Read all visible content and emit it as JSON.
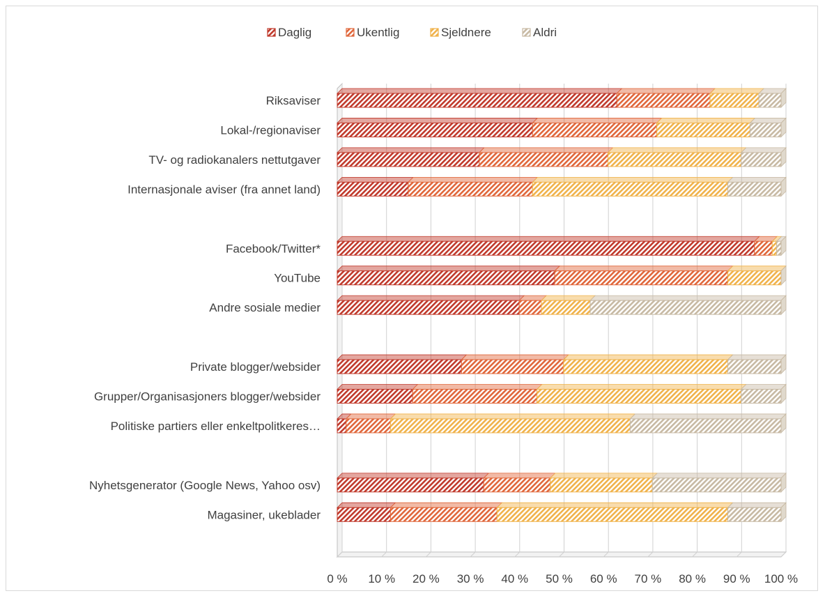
{
  "chart_data": {
    "type": "bar",
    "orientation": "horizontal",
    "stacked": "percent",
    "categories": [
      "Riksaviser",
      "Lokal-/regionaviser",
      "TV- og radiokanalers nettutgaver",
      "Internasjonale aviser (fra annet land)",
      "",
      "Facebook/Twitter*",
      "YouTube",
      "Andre sosiale medier",
      "",
      "Private blogger/websider",
      "Grupper/Organisasjoners blogger/websider",
      "Politiske partiers eller enkeltpolitkeres…",
      "",
      "Nyhetsgenerator (Google News, Yahoo osv)",
      "Magasiner, ukeblader"
    ],
    "series": [
      {
        "name": "Daglig",
        "color": "#c0392b",
        "values": [
          63,
          44,
          32,
          16,
          null,
          94,
          49,
          41,
          null,
          28,
          17,
          2,
          null,
          33,
          12
        ]
      },
      {
        "name": "Ukentlig",
        "color": "#e0663a",
        "values": [
          21,
          28,
          29,
          28,
          null,
          4,
          39,
          5,
          null,
          23,
          28,
          10,
          null,
          15,
          24
        ]
      },
      {
        "name": "Sjeldnere",
        "color": "#f0b24a",
        "values": [
          11,
          21,
          30,
          44,
          null,
          1,
          12,
          11,
          null,
          37,
          46,
          54,
          null,
          23,
          52
        ]
      },
      {
        "name": "Aldri",
        "color": "#c7b9a3",
        "values": [
          5,
          7,
          9,
          12,
          null,
          1,
          0,
          43,
          null,
          12,
          9,
          34,
          null,
          29,
          12
        ]
      }
    ],
    "x_ticks": [
      "0 %",
      "10 %",
      "20 %",
      "30 %",
      "40 %",
      "50 %",
      "60 %",
      "70 %",
      "80 %",
      "90 %",
      "100 %"
    ],
    "xlim": [
      0,
      100
    ],
    "grid": true,
    "legend": "top-center",
    "title": "",
    "xlabel": "",
    "ylabel": ""
  }
}
